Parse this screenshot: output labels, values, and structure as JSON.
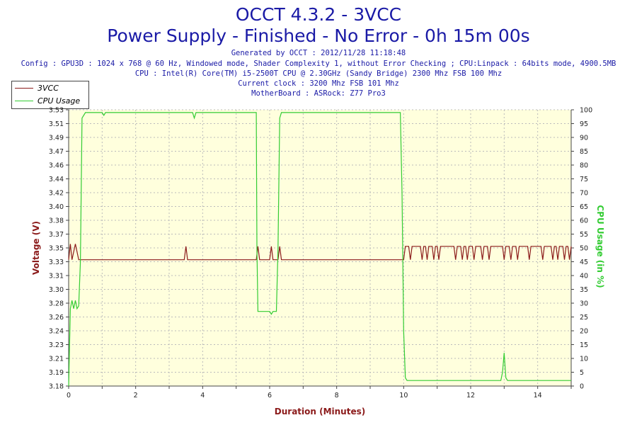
{
  "header": {
    "title_line1": "OCCT 4.3.2 - 3VCC",
    "title_line2": "Power Supply - Finished - No Error - 0h 15m 00s",
    "info": [
      "Generated by OCCT : 2012/11/28 11:18:48",
      "Config : GPU3D : 1024 x 768 @ 60 Hz, Windowed mode, Shader Complexity 1, without Error Checking ; CPU:Linpack : 64bits mode, 4900.5MB",
      "CPU : Intel(R) Core(TM) i5-2500T CPU @ 2.30GHz (Sandy Bridge) 2300 Mhz FSB 100 Mhz",
      "Current clock : 3200 Mhz FSB 101 Mhz",
      "MotherBoard : ASRock: Z77 Pro3"
    ]
  },
  "legend": {
    "items": [
      {
        "label": "3VCC",
        "color": "#8b1a1a"
      },
      {
        "label": "CPU Usage",
        "color": "#33cc33"
      }
    ]
  },
  "chart_data": {
    "type": "line",
    "xlabel": "Duration (Minutes)",
    "ylabel_left": "Voltage (V)",
    "ylabel_right": "CPU Usage (in %)",
    "xlim": [
      0,
      15
    ],
    "ylim_left": [
      3.18,
      3.53
    ],
    "ylim_right": [
      0,
      100
    ],
    "x_ticks": [
      "0",
      "2",
      "4",
      "6",
      "8",
      "10",
      "12",
      "14"
    ],
    "y_left_ticks": [
      "3.18",
      "3.19",
      "3.21",
      "3.23",
      "3.24",
      "3.26",
      "3.28",
      "3.30",
      "3.31",
      "3.33",
      "3.35",
      "3.37",
      "3.38",
      "3.40",
      "3.42",
      "3.44",
      "3.46",
      "3.47",
      "3.49",
      "3.51",
      "3.53"
    ],
    "y_right_ticks": [
      "0",
      "5",
      "10",
      "15",
      "20",
      "25",
      "30",
      "35",
      "40",
      "45",
      "50",
      "55",
      "60",
      "65",
      "70",
      "75",
      "80",
      "85",
      "90",
      "95",
      "100"
    ],
    "background_color": "#ffffdd",
    "grid": true,
    "legend_position": "top-left",
    "series": [
      {
        "name": "3VCC",
        "axis": "left",
        "color": "#8b1a1a",
        "points": [
          [
            0,
            3.34
          ],
          [
            0.05,
            3.36
          ],
          [
            0.1,
            3.34
          ],
          [
            0.2,
            3.36
          ],
          [
            0.3,
            3.34
          ],
          [
            3.45,
            3.34
          ],
          [
            3.5,
            3.357
          ],
          [
            3.55,
            3.34
          ],
          [
            5.6,
            3.34
          ],
          [
            5.65,
            3.357
          ],
          [
            5.7,
            3.34
          ],
          [
            6.0,
            3.34
          ],
          [
            6.05,
            3.357
          ],
          [
            6.1,
            3.34
          ],
          [
            6.25,
            3.34
          ],
          [
            6.3,
            3.357
          ],
          [
            6.35,
            3.34
          ],
          [
            10.0,
            3.34
          ],
          [
            10.05,
            3.357
          ],
          [
            10.15,
            3.357
          ],
          [
            10.2,
            3.34
          ],
          [
            10.25,
            3.357
          ],
          [
            10.5,
            3.357
          ],
          [
            10.55,
            3.34
          ],
          [
            10.6,
            3.357
          ],
          [
            10.65,
            3.357
          ],
          [
            10.7,
            3.34
          ],
          [
            10.75,
            3.357
          ],
          [
            10.85,
            3.357
          ],
          [
            10.9,
            3.34
          ],
          [
            10.95,
            3.357
          ],
          [
            11.0,
            3.357
          ],
          [
            11.05,
            3.34
          ],
          [
            11.1,
            3.357
          ],
          [
            11.5,
            3.357
          ],
          [
            11.55,
            3.34
          ],
          [
            11.6,
            3.357
          ],
          [
            11.7,
            3.357
          ],
          [
            11.75,
            3.34
          ],
          [
            11.8,
            3.357
          ],
          [
            11.85,
            3.357
          ],
          [
            11.9,
            3.34
          ],
          [
            11.95,
            3.357
          ],
          [
            12.05,
            3.357
          ],
          [
            12.1,
            3.34
          ],
          [
            12.15,
            3.357
          ],
          [
            12.3,
            3.357
          ],
          [
            12.35,
            3.34
          ],
          [
            12.4,
            3.357
          ],
          [
            12.5,
            3.357
          ],
          [
            12.55,
            3.34
          ],
          [
            12.6,
            3.357
          ],
          [
            12.95,
            3.357
          ],
          [
            13.0,
            3.34
          ],
          [
            13.05,
            3.357
          ],
          [
            13.15,
            3.357
          ],
          [
            13.2,
            3.34
          ],
          [
            13.25,
            3.357
          ],
          [
            13.35,
            3.357
          ],
          [
            13.4,
            3.34
          ],
          [
            13.45,
            3.357
          ],
          [
            13.7,
            3.357
          ],
          [
            13.75,
            3.34
          ],
          [
            13.8,
            3.357
          ],
          [
            14.1,
            3.357
          ],
          [
            14.15,
            3.34
          ],
          [
            14.2,
            3.357
          ],
          [
            14.4,
            3.357
          ],
          [
            14.45,
            3.34
          ],
          [
            14.5,
            3.357
          ],
          [
            14.55,
            3.357
          ],
          [
            14.6,
            3.34
          ],
          [
            14.65,
            3.357
          ],
          [
            14.75,
            3.357
          ],
          [
            14.8,
            3.34
          ],
          [
            14.85,
            3.357
          ],
          [
            14.9,
            3.357
          ],
          [
            14.95,
            3.34
          ],
          [
            15.0,
            3.357
          ]
        ]
      },
      {
        "name": "CPU Usage",
        "axis": "right",
        "color": "#33cc33",
        "points": [
          [
            0,
            0
          ],
          [
            0.05,
            28
          ],
          [
            0.1,
            31
          ],
          [
            0.15,
            28
          ],
          [
            0.2,
            31
          ],
          [
            0.25,
            28
          ],
          [
            0.3,
            29
          ],
          [
            0.35,
            45
          ],
          [
            0.4,
            97
          ],
          [
            0.5,
            99
          ],
          [
            1.0,
            99
          ],
          [
            1.05,
            98
          ],
          [
            1.1,
            99
          ],
          [
            3.7,
            99
          ],
          [
            3.75,
            97
          ],
          [
            3.8,
            99
          ],
          [
            5.6,
            99
          ],
          [
            5.62,
            50
          ],
          [
            5.65,
            27
          ],
          [
            6.0,
            27
          ],
          [
            6.05,
            26
          ],
          [
            6.1,
            27
          ],
          [
            6.2,
            27
          ],
          [
            6.25,
            50
          ],
          [
            6.3,
            97
          ],
          [
            6.35,
            99
          ],
          [
            9.9,
            99
          ],
          [
            9.95,
            70
          ],
          [
            10.0,
            20
          ],
          [
            10.05,
            3
          ],
          [
            10.1,
            2
          ],
          [
            11.0,
            2
          ],
          [
            12.9,
            2
          ],
          [
            12.95,
            5
          ],
          [
            13.0,
            12
          ],
          [
            13.05,
            3
          ],
          [
            13.1,
            2
          ],
          [
            15.0,
            2
          ]
        ]
      }
    ]
  }
}
